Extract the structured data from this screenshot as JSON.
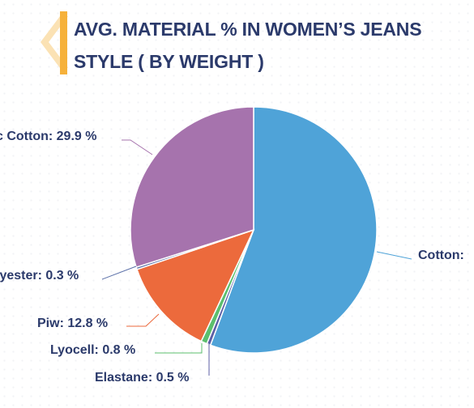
{
  "chart_data": {
    "type": "pie",
    "title": "AVG. MATERIAL % IN WOMEN’S JEANS STYLE ( BY WEIGHT )",
    "slices": [
      {
        "label": "Cotton",
        "display": "Cotton:",
        "value": 55.7,
        "color": "#4fa3d8"
      },
      {
        "label": "Elastane",
        "display": "Elastane: 0.5 %",
        "value": 0.5,
        "color": "#5c5fa6"
      },
      {
        "label": "Lyocell",
        "display": "Lyocell: 0.8 %",
        "value": 0.8,
        "color": "#5cbf6e"
      },
      {
        "label": "Piw",
        "display": "Piw: 12.8 %",
        "value": 12.8,
        "color": "#ec6a3c"
      },
      {
        "label": "Polyester",
        "display": "lyester: 0.3 %",
        "value": 0.3,
        "color": "#5a6fa8"
      },
      {
        "label": "Organic Cotton",
        "display": "c Cotton: 29.9 %",
        "value": 29.9,
        "color": "#a673ad"
      }
    ],
    "legend": "none"
  }
}
